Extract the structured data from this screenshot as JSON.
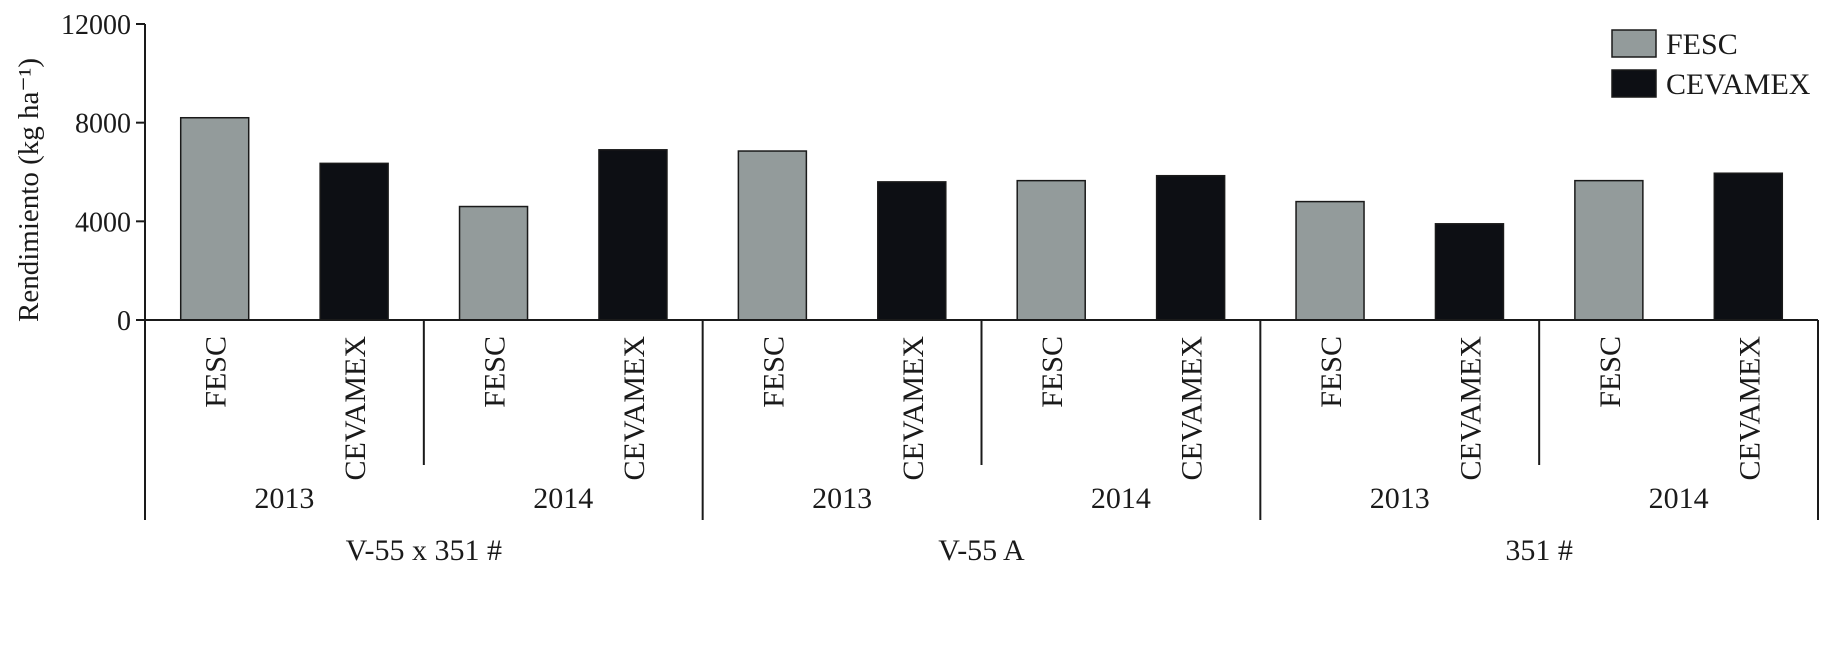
{
  "chart_data": {
    "type": "bar",
    "title": "",
    "ylabel": "Rendimiento (kg ha⁻¹)",
    "ylim": [
      0,
      12000
    ],
    "yticks": [
      "0",
      "4000",
      "8000",
      "12000"
    ],
    "grid": false,
    "legend_position": "top-right",
    "series": [
      {
        "name": "FESC",
        "color": "#939b9b"
      },
      {
        "name": "CEVAMEX",
        "color": "#0d0f14"
      }
    ],
    "groups": [
      "V-55 x 351 #",
      "V-55 A",
      "351 #"
    ],
    "years": [
      "2013",
      "2014"
    ],
    "bars": [
      {
        "label": "FESC",
        "series": 0,
        "value": 8200
      },
      {
        "label": "CEVAMEX",
        "series": 1,
        "value": 6350
      },
      {
        "label": "FESC",
        "series": 0,
        "value": 4600
      },
      {
        "label": "CEVAMEX",
        "series": 1,
        "value": 6900
      },
      {
        "label": "FESC",
        "series": 0,
        "value": 6850
      },
      {
        "label": "CEVAMEX",
        "series": 1,
        "value": 5600
      },
      {
        "label": "FESC",
        "series": 0,
        "value": 5650
      },
      {
        "label": "CEVAMEX",
        "series": 1,
        "value": 5850
      },
      {
        "label": "FESC",
        "series": 0,
        "value": 4800
      },
      {
        "label": "CEVAMEX",
        "series": 1,
        "value": 3900
      },
      {
        "label": "FESC",
        "series": 0,
        "value": 5650
      },
      {
        "label": "CEVAMEX",
        "series": 1,
        "value": 5950
      }
    ]
  }
}
